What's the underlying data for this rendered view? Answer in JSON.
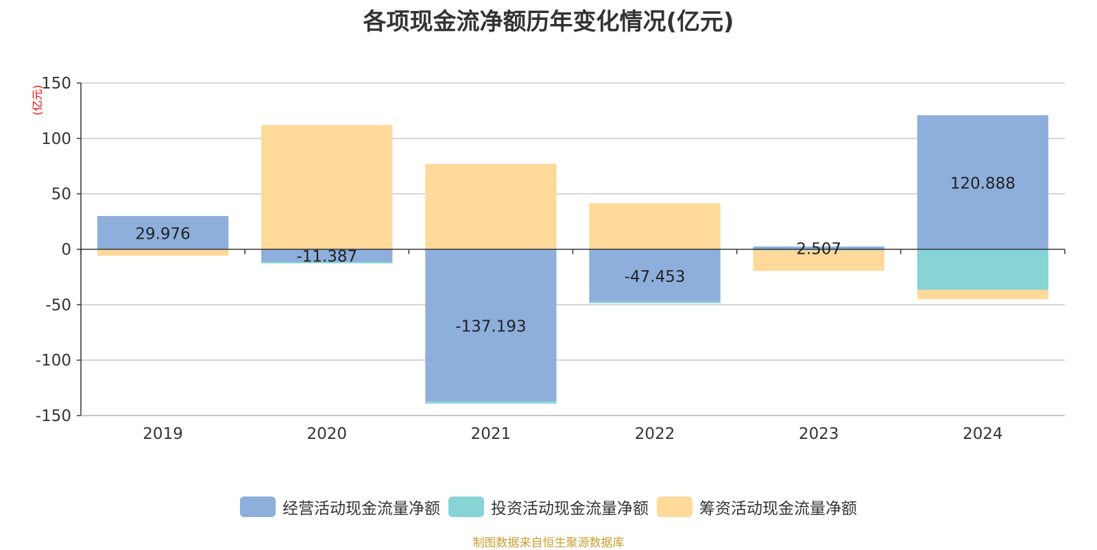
{
  "chart_data": {
    "type": "bar",
    "stacked": true,
    "title": "各项现金流净额历年变化情况(亿元)",
    "ylabel": "(亿元)",
    "xlabel": "",
    "categories": [
      "2019",
      "2020",
      "2021",
      "2022",
      "2023",
      "2024"
    ],
    "ylim": [
      -150,
      150
    ],
    "yticks": [
      150,
      100,
      50,
      0,
      -50,
      -100,
      -150
    ],
    "grid": true,
    "legend_position": "bottom",
    "series": [
      {
        "name": "经营活动现金流量净额",
        "color": "#8eaedb",
        "values": [
          29.976,
          -11.387,
          -137.193,
          -47.453,
          2.507,
          120.888
        ]
      },
      {
        "name": "投资活动现金流量净额",
        "color": "#86d4d6",
        "values": [
          -0.3,
          -1.3,
          -2.0,
          -1.2,
          -1.0,
          -36.5
        ]
      },
      {
        "name": "筹资活动现金流量净额",
        "color": "#fed999",
        "values": [
          -5.5,
          112.0,
          77.0,
          41.5,
          -18.5,
          -8.5
        ]
      }
    ],
    "data_labels": [
      "29.976",
      "-11.387",
      "-137.193",
      "-47.453",
      "2.507",
      "120.888"
    ]
  },
  "footnote": "制图数据来自恒生聚源数据库"
}
